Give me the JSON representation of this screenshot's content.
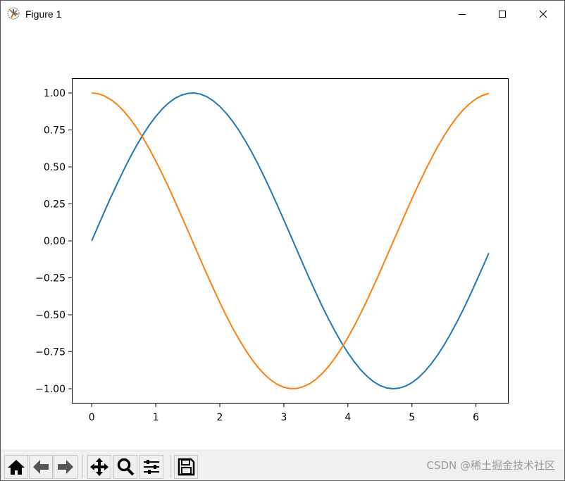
{
  "window": {
    "title": "Figure 1",
    "app_icon": "matplotlib-icon",
    "controls": [
      "minimize-icon",
      "maximize-icon",
      "close-icon"
    ]
  },
  "toolbar": {
    "buttons": [
      {
        "name": "home",
        "icon": "home-icon"
      },
      {
        "name": "back",
        "icon": "arrow-left-icon"
      },
      {
        "name": "forward",
        "icon": "arrow-right-icon"
      },
      {
        "name": "pan",
        "icon": "move-icon"
      },
      {
        "name": "zoom",
        "icon": "magnifier-icon"
      },
      {
        "name": "configure-subplots",
        "icon": "sliders-icon"
      },
      {
        "name": "save",
        "icon": "floppy-disk-icon"
      }
    ]
  },
  "watermark": "CSDN @稀土掘金技术社区",
  "chart_data": {
    "type": "line",
    "xlim": [
      -0.31,
      6.51
    ],
    "ylim": [
      -1.1,
      1.1
    ],
    "grid": false,
    "xticks": [
      "0",
      "1",
      "2",
      "3",
      "4",
      "5",
      "6"
    ],
    "yticks": [
      "1.00",
      "0.75",
      "0.50",
      "0.25",
      "0.00",
      "−0.25",
      "−0.50",
      "−0.75",
      "−1.00"
    ],
    "x": [
      0,
      0.1,
      0.2,
      0.3,
      0.4,
      0.5,
      0.6,
      0.7,
      0.8,
      0.9,
      1.0,
      1.1,
      1.2,
      1.3,
      1.4,
      1.5,
      1.6,
      1.7,
      1.8,
      1.9,
      2.0,
      2.1,
      2.2,
      2.3,
      2.4,
      2.5,
      2.6,
      2.7,
      2.8,
      2.9,
      3.0,
      3.1,
      3.2,
      3.3,
      3.4,
      3.5,
      3.6,
      3.7,
      3.8,
      3.9,
      4.0,
      4.1,
      4.2,
      4.3,
      4.4,
      4.5,
      4.6,
      4.7,
      4.8,
      4.9,
      5.0,
      5.1,
      5.2,
      5.3,
      5.4,
      5.5,
      5.6,
      5.7,
      5.8,
      5.9,
      6.0,
      6.1,
      6.2
    ],
    "series": [
      {
        "color": "#1f77b4",
        "values": [
          0,
          0.1,
          0.199,
          0.296,
          0.389,
          0.479,
          0.565,
          0.644,
          0.717,
          0.783,
          0.841,
          0.891,
          0.932,
          0.964,
          0.985,
          0.997,
          1.0,
          0.992,
          0.974,
          0.946,
          0.909,
          0.863,
          0.808,
          0.746,
          0.675,
          0.598,
          0.516,
          0.427,
          0.335,
          0.239,
          0.141,
          0.042,
          -0.058,
          -0.158,
          -0.256,
          -0.351,
          -0.443,
          -0.53,
          -0.612,
          -0.688,
          -0.757,
          -0.818,
          -0.872,
          -0.916,
          -0.952,
          -0.978,
          -0.994,
          -1.0,
          -0.996,
          -0.982,
          -0.959,
          -0.926,
          -0.883,
          -0.832,
          -0.773,
          -0.706,
          -0.631,
          -0.551,
          -0.465,
          -0.374,
          -0.279,
          -0.182,
          -0.083
        ]
      },
      {
        "color": "#ff7f0e",
        "values": [
          1.0,
          0.995,
          0.98,
          0.955,
          0.921,
          0.878,
          0.825,
          0.765,
          0.697,
          0.622,
          0.54,
          0.454,
          0.362,
          0.267,
          0.17,
          0.071,
          -0.029,
          -0.129,
          -0.227,
          -0.323,
          -0.416,
          -0.505,
          -0.589,
          -0.666,
          -0.737,
          -0.801,
          -0.857,
          -0.904,
          -0.942,
          -0.971,
          -0.99,
          -0.999,
          -0.998,
          -0.987,
          -0.967,
          -0.936,
          -0.897,
          -0.848,
          -0.791,
          -0.726,
          -0.654,
          -0.575,
          -0.49,
          -0.401,
          -0.307,
          -0.211,
          -0.112,
          -0.012,
          0.087,
          0.187,
          0.284,
          0.378,
          0.469,
          0.554,
          0.635,
          0.709,
          0.776,
          0.835,
          0.886,
          0.927,
          0.96,
          0.983,
          0.997
        ]
      }
    ]
  }
}
